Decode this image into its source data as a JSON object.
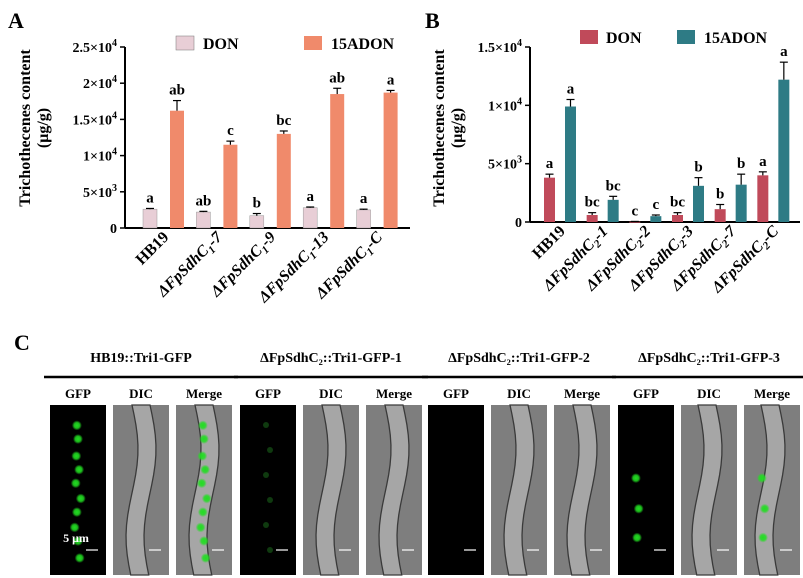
{
  "colors": {
    "don_a": "#e8ced6",
    "adon_a": "#f08a6b",
    "don_b": "#c04a5a",
    "adon_b": "#2e7b85",
    "gfp": "#22dd22"
  },
  "panel_a": {
    "label": "A",
    "ylabel_line1": "Trichothecenes content",
    "ylabel_line2": "(μg/g)",
    "legend": [
      "DON",
      "15ADON"
    ]
  },
  "panel_b": {
    "label": "B",
    "ylabel_line1": "Trichothecenes content",
    "ylabel_line2": "(μg/g)",
    "legend": [
      "DON",
      "15ADON"
    ]
  },
  "panel_c": {
    "label": "C",
    "groups": [
      {
        "title": "HB19::Tri1-GFP",
        "subs": [
          "GFP",
          "DIC",
          "Merge"
        ],
        "scale": "5 μm"
      },
      {
        "title": "ΔFpSdhC₂::Tri1-GFP-1",
        "subs": [
          "GFP",
          "DIC",
          "Merge"
        ]
      },
      {
        "title": "ΔFpSdhC₂::Tri1-GFP-2",
        "subs": [
          "GFP",
          "DIC",
          "Merge"
        ]
      },
      {
        "title": "ΔFpSdhC₂::Tri1-GFP-3",
        "subs": [
          "GFP",
          "DIC",
          "Merge"
        ]
      }
    ]
  },
  "chart_data": [
    {
      "type": "bar",
      "panel": "A",
      "categories": [
        "HB19",
        "ΔFpSdhC1-7",
        "ΔFpSdhC1-9",
        "ΔFpSdhC1-13",
        "ΔFpSdhC1-C"
      ],
      "tick_labels": [
        {
          "main": "HB19"
        },
        {
          "main": "ΔFpSdhC",
          "sub": "1",
          "suffix": "-7"
        },
        {
          "main": "ΔFpSdhC",
          "sub": "1",
          "suffix": "-9"
        },
        {
          "main": "ΔFpSdhC",
          "sub": "1",
          "suffix": "-13"
        },
        {
          "main": "ΔFpSdhC",
          "sub": "1",
          "suffix": "-C"
        }
      ],
      "series": [
        {
          "name": "DON",
          "values": [
            2600,
            2200,
            1700,
            2800,
            2500
          ],
          "errors": [
            100,
            100,
            300,
            100,
            100
          ],
          "letters": [
            "a",
            "ab",
            "b",
            "a",
            "a"
          ]
        },
        {
          "name": "15ADON",
          "values": [
            16200,
            11500,
            13000,
            18500,
            18700
          ],
          "errors": [
            1400,
            500,
            400,
            800,
            300
          ],
          "letters": [
            "ab",
            "c",
            "bc",
            "ab",
            "a"
          ]
        }
      ],
      "ylim": [
        0,
        25000
      ],
      "yticks": [
        {
          "value": 0,
          "base": "0"
        },
        {
          "value": 5000,
          "base": "5×10",
          "exp": "3"
        },
        {
          "value": 10000,
          "base": "1×10",
          "exp": "4"
        },
        {
          "value": 15000,
          "base": "1.5×10",
          "exp": "4"
        },
        {
          "value": 20000,
          "base": "2×10",
          "exp": "4"
        },
        {
          "value": 25000,
          "base": "2.5×10",
          "exp": "4"
        }
      ]
    },
    {
      "type": "bar",
      "panel": "B",
      "categories": [
        "HB19",
        "ΔFpSdhC2-1",
        "ΔFpSdhC2-2",
        "ΔFpSdhC2-3",
        "ΔFpSdhC2-7",
        "ΔFpSdhC2-C"
      ],
      "tick_labels": [
        {
          "main": "HB19"
        },
        {
          "main": "ΔFpSdhC",
          "sub": "2",
          "suffix": "-1"
        },
        {
          "main": "ΔFpSdhC",
          "sub": "2",
          "suffix": "-2"
        },
        {
          "main": "ΔFpSdhC",
          "sub": "2",
          "suffix": "-3"
        },
        {
          "main": "ΔFpSdhC",
          "sub": "2",
          "suffix": "-7"
        },
        {
          "main": "ΔFpSdhC",
          "sub": "2",
          "suffix": "-C"
        }
      ],
      "series": [
        {
          "name": "DON",
          "values": [
            3800,
            600,
            30,
            600,
            1100,
            4000
          ],
          "errors": [
            300,
            200,
            20,
            200,
            400,
            300
          ],
          "letters": [
            "a",
            "bc",
            "c",
            "bc",
            "b",
            "a"
          ]
        },
        {
          "name": "15ADON",
          "values": [
            9900,
            1900,
            500,
            3100,
            3200,
            12200
          ],
          "errors": [
            600,
            300,
            100,
            700,
            900,
            1500
          ],
          "letters": [
            "a",
            "bc",
            "c",
            "b",
            "b",
            "a"
          ]
        }
      ],
      "ylim": [
        0,
        15000
      ],
      "yticks": [
        {
          "value": 0,
          "base": "0"
        },
        {
          "value": 5000,
          "base": "5×10",
          "exp": "3"
        },
        {
          "value": 10000,
          "base": "1×10",
          "exp": "4"
        },
        {
          "value": 15000,
          "base": "1.5×10",
          "exp": "4"
        }
      ]
    }
  ]
}
